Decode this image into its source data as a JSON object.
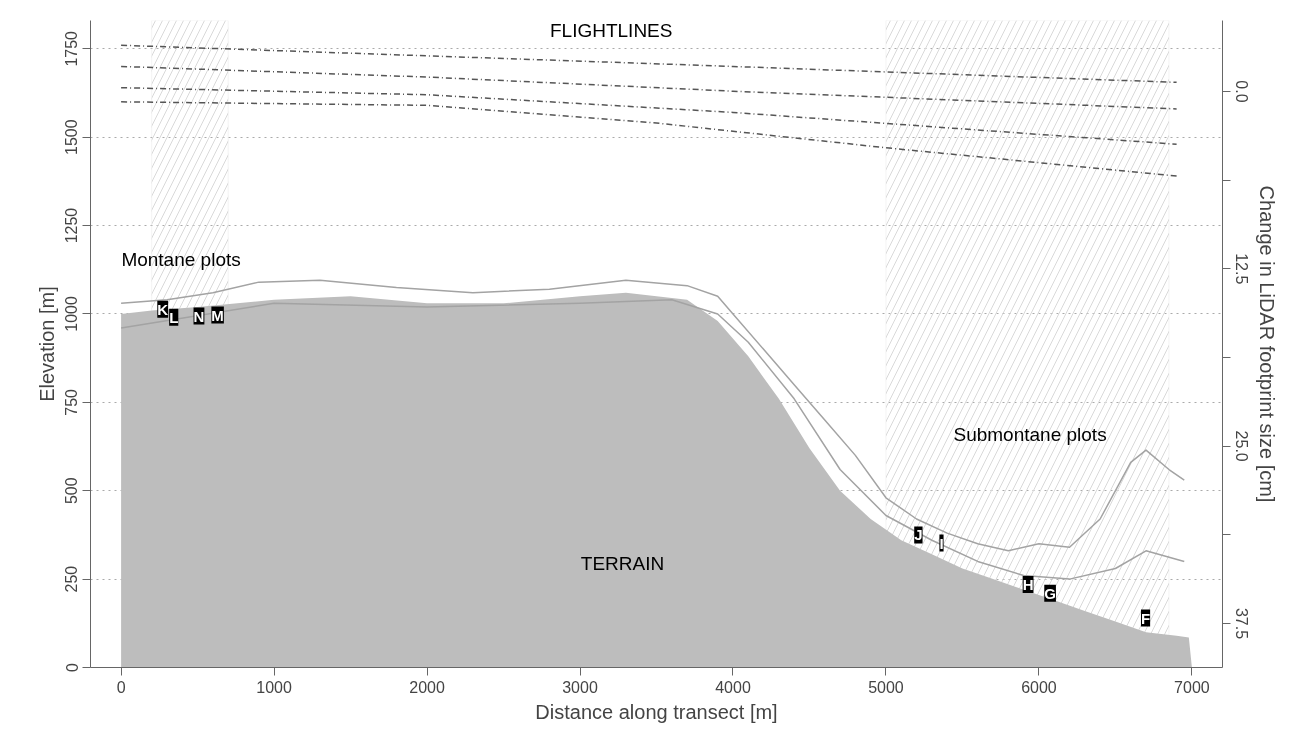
{
  "chart_data": {
    "type": "line",
    "xlabel": "Distance along transect [m]",
    "ylabel": "Elevation [m]",
    "y2label": "Change in LiDAR footprint size [cm]",
    "xlim": [
      -200,
      7200
    ],
    "ylim": [
      0,
      1830
    ],
    "y2lim": [
      40.6,
      -5.0
    ],
    "xticks": [
      0,
      1000,
      2000,
      3000,
      4000,
      5000,
      6000,
      7000
    ],
    "yticks": [
      0,
      250,
      500,
      750,
      1000,
      1250,
      1500,
      1750
    ],
    "y2ticks": [
      {
        "value": 0,
        "label": "0.0"
      },
      {
        "value": 6.25,
        "label": null
      },
      {
        "value": 12.5,
        "label": "12.5"
      },
      {
        "value": 18.75,
        "label": null
      },
      {
        "value": 25,
        "label": "25.0"
      },
      {
        "value": 31.25,
        "label": null
      },
      {
        "value": 37.5,
        "label": "37.5"
      }
    ],
    "grid": "y",
    "series": [
      {
        "type": "area",
        "color": "#bdbdbd",
        "x": [
          0,
          200,
          500,
          1000,
          1500,
          2000,
          2500,
          3000,
          3300,
          3700,
          3900,
          4100,
          4300,
          4500,
          4700,
          4900,
          5100,
          5300,
          5500,
          5700,
          5900,
          6100,
          6300,
          6500,
          6700,
          6900,
          6980,
          7000
        ],
        "values": [
          1000,
          1010,
          1020,
          1040,
          1050,
          1030,
          1030,
          1050,
          1060,
          1040,
          980,
          880,
          760,
          620,
          500,
          420,
          360,
          320,
          280,
          250,
          220,
          190,
          160,
          130,
          100,
          90,
          85,
          0
        ]
      },
      {
        "color": "#a3a3a3",
        "x": [
          0,
          300,
          600,
          900,
          1300,
          1800,
          2300,
          2800,
          3300,
          3700,
          3900,
          4000,
          4200,
          4400,
          4600,
          4800,
          5000,
          5200,
          5400,
          5600,
          5800,
          6000,
          6200,
          6400,
          6600,
          6700,
          6850,
          6950
        ],
        "values": [
          1030,
          1040,
          1060,
          1090,
          1095,
          1075,
          1060,
          1070,
          1095,
          1080,
          1050,
          1000,
          900,
          800,
          700,
          600,
          480,
          420,
          380,
          350,
          330,
          350,
          340,
          420,
          580,
          615,
          560,
          530
        ]
      },
      {
        "color": "#a3a3a3",
        "x": [
          0,
          1000,
          2000,
          3000,
          3600,
          3900,
          4100,
          4400,
          4700,
          5000,
          5300,
          5600,
          5900,
          6200,
          6500,
          6700,
          6950
        ],
        "values": [
          960,
          1030,
          1020,
          1030,
          1040,
          1000,
          920,
          760,
          560,
          430,
          360,
          300,
          260,
          250,
          280,
          330,
          300
        ]
      },
      {
        "type": "line",
        "color": "#555555",
        "line_style": "dashed",
        "x": [
          0,
          2000,
          4000,
          6900
        ],
        "values": [
          1760,
          1730,
          1700,
          1655
        ]
      },
      {
        "type": "line",
        "color": "#555555",
        "line_style": "dashed",
        "x": [
          0,
          2000,
          4000,
          6900
        ],
        "values": [
          1700,
          1670,
          1630,
          1580
        ]
      },
      {
        "type": "line",
        "color": "#555555",
        "line_style": "dashed",
        "x": [
          0,
          2000,
          4000,
          6900
        ],
        "values": [
          1640,
          1620,
          1570,
          1480
        ]
      },
      {
        "type": "line",
        "color": "#555555",
        "line_style": "dashed",
        "x": [
          0,
          2000,
          3500,
          5000,
          6900
        ],
        "values": [
          1600,
          1590,
          1540,
          1470,
          1390
        ]
      }
    ],
    "bands": [
      {
        "axis": "x",
        "from": 200,
        "to": 700,
        "color": "#d9d9d9"
      },
      {
        "axis": "x",
        "from": 5000,
        "to": 6850,
        "color": "#d9d9d9"
      }
    ],
    "annotations": [
      "FLIGHTLINES",
      "Montane plots",
      "Submontane plots",
      "TERRAIN",
      {
        "text": "K",
        "x": 272,
        "y": 1013
      },
      {
        "text": "L",
        "x": 344,
        "y": 991
      },
      {
        "text": "N",
        "x": 509,
        "y": 994
      },
      {
        "text": "M",
        "x": 631,
        "y": 997
      },
      {
        "text": "J",
        "x": 5212,
        "y": 375
      },
      {
        "text": "I",
        "x": 5363,
        "y": 352
      },
      {
        "text": "H",
        "x": 5929,
        "y": 235
      },
      {
        "text": "G",
        "x": 6073,
        "y": 210
      },
      {
        "text": "F",
        "x": 6697,
        "y": 140
      }
    ]
  }
}
